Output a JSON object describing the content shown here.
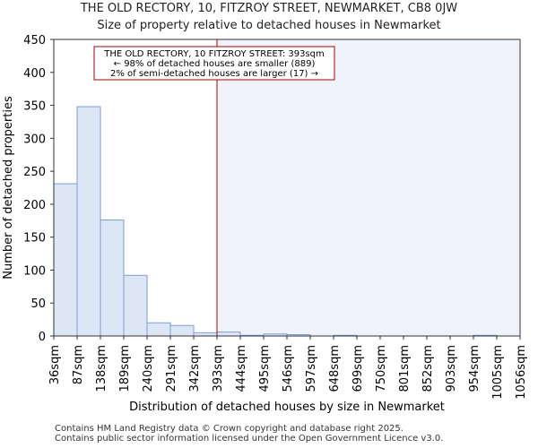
{
  "chart_data": {
    "type": "bar",
    "title": "THE OLD RECTORY, 10, FITZROY STREET, NEWMARKET, CB8 0JW",
    "subtitle": "Size of property relative to detached houses in Newmarket",
    "xlabel": "Distribution of detached houses by size in Newmarket",
    "ylabel": "Number of detached properties",
    "ylim": [
      0,
      450
    ],
    "yticks": [
      0,
      50,
      100,
      150,
      200,
      250,
      300,
      350,
      400,
      450
    ],
    "bin_edges": [
      "36sqm",
      "87sqm",
      "138sqm",
      "189sqm",
      "240sqm",
      "291sqm",
      "342sqm",
      "393sqm",
      "444sqm",
      "495sqm",
      "546sqm",
      "597sqm",
      "648sqm",
      "699sqm",
      "750sqm",
      "801sqm",
      "852sqm",
      "903sqm",
      "954sqm",
      "1005sqm",
      "1056sqm"
    ],
    "values": [
      231,
      348,
      176,
      92,
      20,
      16,
      5,
      6,
      1,
      3,
      2,
      0,
      1,
      0,
      0,
      0,
      0,
      0,
      1,
      0
    ],
    "property_marker": {
      "value_index": 7,
      "label": "393sqm"
    },
    "annotation": {
      "line1": "THE OLD RECTORY, 10 FITZROY STREET: 393sqm",
      "line2": "← 98% of detached houses are smaller (889)",
      "line3": "2% of semi-detached houses are larger (17) →"
    },
    "colors": {
      "bar_fill": "#dce6f5",
      "bar_edge": "#7a9fd4",
      "highlight": "#f0f3fb",
      "marker": "#aa0000"
    }
  },
  "footer": {
    "line1": "Contains HM Land Registry data © Crown copyright and database right 2025.",
    "line2": "Contains public sector information licensed under the Open Government Licence v3.0."
  }
}
